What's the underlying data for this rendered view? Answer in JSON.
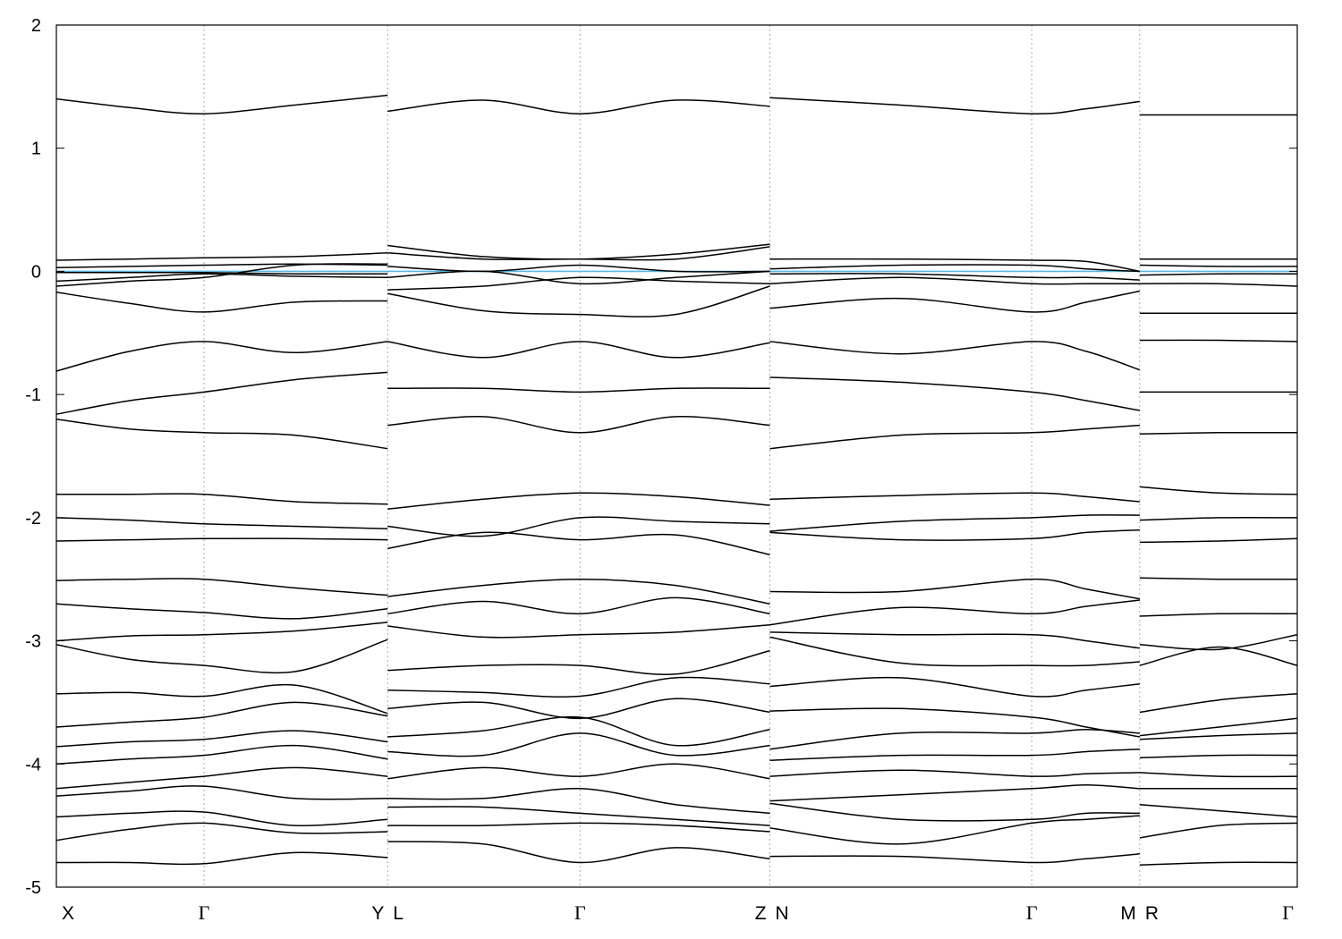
{
  "chart_data": {
    "type": "line",
    "title": "",
    "xlabel": "",
    "ylabel": "",
    "ylim": [
      -5,
      2
    ],
    "xlim": [
      0,
      1
    ],
    "y_ticks": [
      2,
      1,
      0,
      -1,
      -2,
      -3,
      -4,
      -5
    ],
    "y_tick_labels": [
      "2",
      "1",
      "0",
      "-1",
      "-2",
      "-3",
      "-4",
      "-5"
    ],
    "x_ticks": [
      {
        "k": 0.0,
        "label": "X"
      },
      {
        "k": 0.119,
        "label": "Γ"
      },
      {
        "k": 0.267,
        "label": "Y"
      },
      {
        "k": 0.267,
        "label": "L"
      },
      {
        "k": 0.422,
        "label": "Γ"
      },
      {
        "k": 0.575,
        "label": "Z"
      },
      {
        "k": 0.575,
        "label": "N"
      },
      {
        "k": 0.786,
        "label": "Γ"
      },
      {
        "k": 0.873,
        "label": "M"
      },
      {
        "k": 0.873,
        "label": "R"
      },
      {
        "k": 1.0,
        "label": "Γ"
      }
    ],
    "grid": "vertical dotted lines at high-symmetry points",
    "fermi_level": {
      "value": 0,
      "color": "#5bb8e0"
    },
    "band_color": "#000000",
    "segments": [
      {
        "path": "X-Γ-Y",
        "k": [
          0.0,
          0.059,
          0.119,
          0.192,
          0.267
        ],
        "bands": [
          [
            1.4,
            1.33,
            1.28,
            1.35,
            1.43
          ],
          [
            0.09,
            0.1,
            0.11,
            0.12,
            0.15
          ],
          [
            0.03,
            0.04,
            0.05,
            0.06,
            0.05
          ],
          [
            -0.01,
            -0.01,
            -0.01,
            -0.02,
            -0.02
          ],
          [
            -0.08,
            -0.05,
            -0.02,
            -0.04,
            -0.05
          ],
          [
            -0.12,
            -0.08,
            -0.05,
            0.05,
            0.06
          ],
          [
            -0.17,
            -0.26,
            -0.33,
            -0.25,
            -0.24
          ],
          [
            -0.81,
            -0.65,
            -0.57,
            -0.66,
            -0.57
          ],
          [
            -1.16,
            -1.05,
            -0.98,
            -0.88,
            -0.82
          ],
          [
            -1.2,
            -1.28,
            -1.31,
            -1.33,
            -1.44
          ],
          [
            -1.81,
            -1.81,
            -1.81,
            -1.87,
            -1.89
          ],
          [
            -2.0,
            -2.02,
            -2.05,
            -2.07,
            -2.09
          ],
          [
            -2.19,
            -2.18,
            -2.17,
            -2.17,
            -2.18
          ],
          [
            -2.51,
            -2.5,
            -2.5,
            -2.57,
            -2.63
          ],
          [
            -2.7,
            -2.74,
            -2.77,
            -2.82,
            -2.74
          ],
          [
            -3.0,
            -2.96,
            -2.95,
            -2.92,
            -2.85
          ],
          [
            -3.03,
            -3.15,
            -3.2,
            -3.25,
            -2.99
          ],
          [
            -3.43,
            -3.42,
            -3.45,
            -3.36,
            -3.59
          ],
          [
            -3.7,
            -3.66,
            -3.62,
            -3.5,
            -3.61
          ],
          [
            -3.86,
            -3.82,
            -3.8,
            -3.73,
            -3.82
          ],
          [
            -4.0,
            -3.96,
            -3.93,
            -3.85,
            -3.96
          ],
          [
            -4.2,
            -4.15,
            -4.1,
            -4.03,
            -4.1
          ],
          [
            -4.26,
            -4.22,
            -4.18,
            -4.28,
            -4.28
          ],
          [
            -4.43,
            -4.4,
            -4.39,
            -4.5,
            -4.45
          ],
          [
            -4.62,
            -4.53,
            -4.48,
            -4.56,
            -4.55
          ],
          [
            -4.8,
            -4.8,
            -4.81,
            -4.72,
            -4.76
          ]
        ]
      },
      {
        "path": "L-Γ-Z",
        "k": [
          0.267,
          0.344,
          0.422,
          0.499,
          0.575
        ],
        "bands": [
          [
            1.3,
            1.39,
            1.28,
            1.39,
            1.34
          ],
          [
            0.21,
            0.12,
            0.1,
            0.14,
            0.22
          ],
          [
            0.15,
            0.1,
            0.1,
            0.1,
            0.2
          ],
          [
            0.04,
            0.0,
            0.05,
            0.0,
            0.0
          ],
          [
            -0.05,
            0.0,
            -0.1,
            -0.05,
            0.0
          ],
          [
            -0.15,
            -0.12,
            -0.05,
            -0.08,
            -0.1
          ],
          [
            -0.18,
            -0.32,
            -0.35,
            -0.35,
            -0.12
          ],
          [
            -0.57,
            -0.7,
            -0.57,
            -0.7,
            -0.58
          ],
          [
            -0.95,
            -0.95,
            -0.98,
            -0.95,
            -0.95
          ],
          [
            -1.25,
            -1.18,
            -1.31,
            -1.18,
            -1.25
          ],
          [
            -1.93,
            -1.85,
            -1.8,
            -1.83,
            -1.9
          ],
          [
            -2.07,
            -2.15,
            -2.0,
            -2.03,
            -2.05
          ],
          [
            -2.25,
            -2.12,
            -2.18,
            -2.14,
            -2.3
          ],
          [
            -2.64,
            -2.55,
            -2.5,
            -2.55,
            -2.7
          ],
          [
            -2.78,
            -2.68,
            -2.78,
            -2.65,
            -2.78
          ],
          [
            -2.88,
            -2.97,
            -2.95,
            -2.93,
            -2.87
          ],
          [
            -3.24,
            -3.2,
            -3.2,
            -3.27,
            -3.08
          ],
          [
            -3.4,
            -3.42,
            -3.45,
            -3.3,
            -3.35
          ],
          [
            -3.55,
            -3.5,
            -3.63,
            -3.47,
            -3.58
          ],
          [
            -3.78,
            -3.73,
            -3.62,
            -3.85,
            -3.72
          ],
          [
            -3.9,
            -3.93,
            -3.75,
            -3.93,
            -3.85
          ],
          [
            -4.12,
            -4.03,
            -4.1,
            -4.0,
            -4.12
          ],
          [
            -4.28,
            -4.28,
            -4.2,
            -4.33,
            -4.4
          ],
          [
            -4.35,
            -4.35,
            -4.4,
            -4.45,
            -4.5
          ],
          [
            -4.5,
            -4.5,
            -4.48,
            -4.5,
            -4.55
          ],
          [
            -4.63,
            -4.65,
            -4.8,
            -4.68,
            -4.77
          ]
        ]
      },
      {
        "path": "N-Γ-M",
        "k": [
          0.575,
          0.68,
          0.786,
          0.83,
          0.873
        ],
        "bands": [
          [
            1.41,
            1.35,
            1.28,
            1.32,
            1.38
          ],
          [
            0.1,
            0.1,
            0.09,
            0.08,
            0.0
          ],
          [
            0.02,
            0.05,
            0.05,
            0.02,
            0.0
          ],
          [
            -0.02,
            -0.02,
            -0.05,
            -0.05,
            -0.07
          ],
          [
            -0.1,
            -0.05,
            -0.1,
            -0.1,
            -0.1
          ],
          [
            -0.3,
            -0.22,
            -0.33,
            -0.25,
            -0.16
          ],
          [
            -0.57,
            -0.67,
            -0.57,
            -0.65,
            -0.8
          ],
          [
            -0.86,
            -0.9,
            -0.98,
            -1.05,
            -1.13
          ],
          [
            -1.44,
            -1.33,
            -1.31,
            -1.28,
            -1.25
          ],
          [
            -1.85,
            -1.82,
            -1.8,
            -1.83,
            -1.87
          ],
          [
            -2.11,
            -2.03,
            -2.0,
            -1.98,
            -1.98
          ],
          [
            -2.12,
            -2.18,
            -2.17,
            -2.12,
            -2.1
          ],
          [
            -2.6,
            -2.6,
            -2.5,
            -2.58,
            -2.66
          ],
          [
            -2.87,
            -2.73,
            -2.78,
            -2.72,
            -2.67
          ],
          [
            -2.93,
            -2.95,
            -2.95,
            -3.0,
            -3.06
          ],
          [
            -2.97,
            -3.18,
            -3.2,
            -3.2,
            -3.17
          ],
          [
            -3.37,
            -3.3,
            -3.45,
            -3.4,
            -3.35
          ],
          [
            -3.57,
            -3.55,
            -3.62,
            -3.7,
            -3.78
          ],
          [
            -3.88,
            -3.75,
            -3.75,
            -3.72,
            -3.75
          ],
          [
            -3.97,
            -3.93,
            -3.93,
            -3.9,
            -3.88
          ],
          [
            -4.1,
            -4.05,
            -4.1,
            -4.08,
            -4.07
          ],
          [
            -4.3,
            -4.25,
            -4.2,
            -4.17,
            -4.2
          ],
          [
            -4.32,
            -4.45,
            -4.45,
            -4.4,
            -4.4
          ],
          [
            -4.52,
            -4.65,
            -4.48,
            -4.45,
            -4.42
          ],
          [
            -4.75,
            -4.75,
            -4.8,
            -4.77,
            -4.73
          ]
        ]
      },
      {
        "path": "R-Γ",
        "k": [
          0.873,
          0.937,
          1.0
        ],
        "bands": [
          [
            1.27,
            1.27,
            1.27
          ],
          [
            0.1,
            0.1,
            0.1
          ],
          [
            0.05,
            0.04,
            0.04
          ],
          [
            -0.03,
            -0.02,
            -0.02
          ],
          [
            -0.1,
            -0.1,
            -0.12
          ],
          [
            -0.34,
            -0.34,
            -0.34
          ],
          [
            -0.56,
            -0.56,
            -0.57
          ],
          [
            -0.98,
            -0.98,
            -0.98
          ],
          [
            -1.32,
            -1.31,
            -1.31
          ],
          [
            -1.75,
            -1.8,
            -1.81
          ],
          [
            -2.02,
            -2.0,
            -2.0
          ],
          [
            -2.2,
            -2.19,
            -2.17
          ],
          [
            -2.49,
            -2.5,
            -2.5
          ],
          [
            -2.8,
            -2.78,
            -2.78
          ],
          [
            -3.03,
            -3.07,
            -2.95
          ],
          [
            -3.2,
            -3.05,
            -3.2
          ],
          [
            -3.58,
            -3.48,
            -3.43
          ],
          [
            -3.77,
            -3.7,
            -3.63
          ],
          [
            -3.8,
            -3.77,
            -3.75
          ],
          [
            -3.95,
            -3.93,
            -3.93
          ],
          [
            -4.07,
            -4.1,
            -4.1
          ],
          [
            -4.2,
            -4.2,
            -4.2
          ],
          [
            -4.33,
            -4.38,
            -4.43
          ],
          [
            -4.6,
            -4.5,
            -4.48
          ],
          [
            -4.82,
            -4.8,
            -4.8
          ]
        ]
      }
    ]
  }
}
